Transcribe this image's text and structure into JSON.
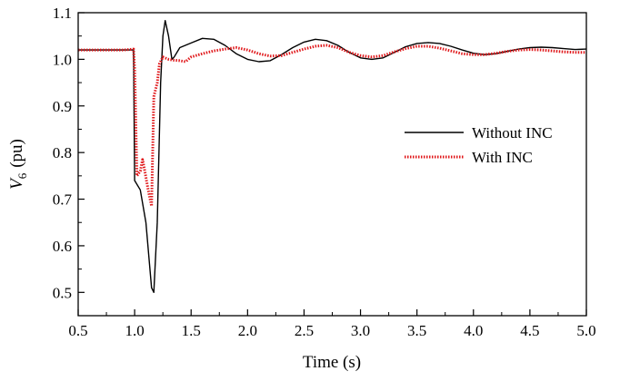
{
  "chart_data": {
    "type": "line",
    "xlabel": "Time (s)",
    "ylabel": {
      "symbol": "V",
      "subscript": "6",
      "unit": "(pu)"
    },
    "xlim": [
      0.5,
      5.0
    ],
    "ylim": [
      0.45,
      1.1
    ],
    "xticks": [
      "0.5",
      "1.0",
      "1.5",
      "2.0",
      "2.5",
      "3.0",
      "3.5",
      "4.0",
      "4.5",
      "5.0"
    ],
    "yticks": [
      "0.5",
      "0.6",
      "0.7",
      "0.8",
      "0.9",
      "1.0",
      "1.1"
    ],
    "grid": false,
    "legend_position": "center-right",
    "series": [
      {
        "name": "Without INC",
        "color": "#000000",
        "style": "solid",
        "points": [
          [
            0.5,
            1.02
          ],
          [
            0.9,
            1.02
          ],
          [
            0.99,
            1.02
          ],
          [
            1.0,
            0.74
          ],
          [
            1.05,
            0.72
          ],
          [
            1.1,
            0.65
          ],
          [
            1.15,
            0.51
          ],
          [
            1.17,
            0.5
          ],
          [
            1.2,
            0.65
          ],
          [
            1.23,
            0.95
          ],
          [
            1.25,
            1.05
          ],
          [
            1.27,
            1.083
          ],
          [
            1.3,
            1.05
          ],
          [
            1.33,
            1.0
          ],
          [
            1.35,
            1.005
          ],
          [
            1.4,
            1.025
          ],
          [
            1.5,
            1.035
          ],
          [
            1.6,
            1.045
          ],
          [
            1.7,
            1.043
          ],
          [
            1.8,
            1.03
          ],
          [
            1.9,
            1.012
          ],
          [
            2.0,
            1.0
          ],
          [
            2.1,
            0.995
          ],
          [
            2.2,
            0.997
          ],
          [
            2.3,
            1.01
          ],
          [
            2.4,
            1.025
          ],
          [
            2.5,
            1.037
          ],
          [
            2.6,
            1.043
          ],
          [
            2.7,
            1.04
          ],
          [
            2.8,
            1.03
          ],
          [
            2.9,
            1.015
          ],
          [
            3.0,
            1.003
          ],
          [
            3.1,
            1.0
          ],
          [
            3.2,
            1.003
          ],
          [
            3.3,
            1.015
          ],
          [
            3.4,
            1.027
          ],
          [
            3.5,
            1.034
          ],
          [
            3.6,
            1.036
          ],
          [
            3.7,
            1.034
          ],
          [
            3.8,
            1.028
          ],
          [
            3.9,
            1.02
          ],
          [
            4.0,
            1.013
          ],
          [
            4.1,
            1.01
          ],
          [
            4.2,
            1.012
          ],
          [
            4.3,
            1.017
          ],
          [
            4.4,
            1.022
          ],
          [
            4.5,
            1.025
          ],
          [
            4.6,
            1.026
          ],
          [
            4.7,
            1.025
          ],
          [
            4.8,
            1.023
          ],
          [
            4.9,
            1.021
          ],
          [
            5.0,
            1.022
          ]
        ]
      },
      {
        "name": "With INC",
        "color": "#e0181b",
        "style": "dotted",
        "points": [
          [
            0.5,
            1.02
          ],
          [
            0.9,
            1.02
          ],
          [
            0.99,
            1.022
          ],
          [
            1.0,
            0.98
          ],
          [
            1.02,
            0.75
          ],
          [
            1.05,
            0.76
          ],
          [
            1.07,
            0.785
          ],
          [
            1.09,
            0.76
          ],
          [
            1.12,
            0.72
          ],
          [
            1.15,
            0.685
          ],
          [
            1.17,
            0.92
          ],
          [
            1.2,
            0.95
          ],
          [
            1.22,
            0.99
          ],
          [
            1.25,
            1.005
          ],
          [
            1.3,
            1.0
          ],
          [
            1.35,
            0.998
          ],
          [
            1.4,
            0.997
          ],
          [
            1.45,
            0.995
          ],
          [
            1.5,
            1.005
          ],
          [
            1.6,
            1.012
          ],
          [
            1.7,
            1.018
          ],
          [
            1.8,
            1.022
          ],
          [
            1.9,
            1.025
          ],
          [
            2.0,
            1.02
          ],
          [
            2.1,
            1.012
          ],
          [
            2.2,
            1.007
          ],
          [
            2.3,
            1.008
          ],
          [
            2.4,
            1.015
          ],
          [
            2.5,
            1.022
          ],
          [
            2.6,
            1.028
          ],
          [
            2.7,
            1.03
          ],
          [
            2.8,
            1.025
          ],
          [
            2.9,
            1.015
          ],
          [
            3.0,
            1.008
          ],
          [
            3.1,
            1.005
          ],
          [
            3.2,
            1.008
          ],
          [
            3.3,
            1.016
          ],
          [
            3.4,
            1.023
          ],
          [
            3.5,
            1.028
          ],
          [
            3.6,
            1.028
          ],
          [
            3.7,
            1.024
          ],
          [
            3.8,
            1.018
          ],
          [
            3.9,
            1.012
          ],
          [
            4.0,
            1.01
          ],
          [
            4.1,
            1.01
          ],
          [
            4.2,
            1.013
          ],
          [
            4.3,
            1.017
          ],
          [
            4.4,
            1.02
          ],
          [
            4.5,
            1.021
          ],
          [
            4.6,
            1.02
          ],
          [
            4.7,
            1.018
          ],
          [
            4.8,
            1.016
          ],
          [
            4.9,
            1.015
          ],
          [
            5.0,
            1.015
          ]
        ]
      }
    ]
  }
}
